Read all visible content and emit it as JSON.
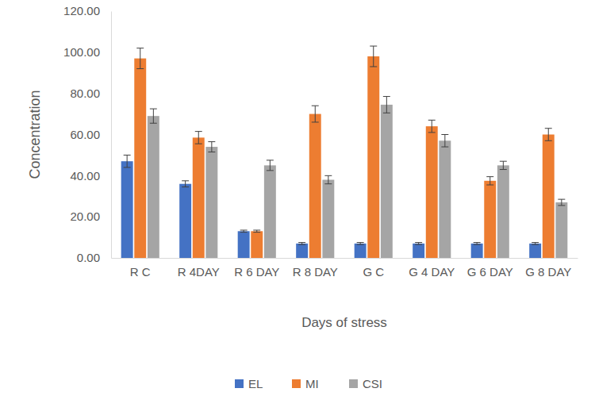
{
  "chart_data": {
    "type": "bar",
    "x_label": "Days of stress",
    "y_label": "Concentration",
    "categories": [
      "R C",
      "R 4DAY",
      "R 6 DAY",
      "R 8 DAY",
      "G C",
      "G 4 DAY",
      "G 6 DAY",
      "G 8 DAY"
    ],
    "series": [
      {
        "name": "EL",
        "color": "#4472c4",
        "values": [
          47,
          36,
          13,
          7,
          7,
          7,
          7,
          7
        ],
        "errors": [
          3,
          1.5,
          0.5,
          0.5,
          0.5,
          0.5,
          0.5,
          0.5
        ]
      },
      {
        "name": "MI",
        "color": "#ed7d31",
        "values": [
          97,
          58.5,
          13,
          70,
          98,
          64,
          37.5,
          60
        ],
        "errors": [
          5,
          3,
          0.5,
          4,
          5,
          3,
          2,
          3
        ]
      },
      {
        "name": "CSI",
        "color": "#a5a5a5",
        "values": [
          69,
          54,
          45,
          38,
          74.5,
          57,
          45,
          27
        ],
        "errors": [
          3.5,
          2.5,
          2.5,
          2,
          4,
          3,
          2,
          1.5
        ]
      }
    ],
    "ylim": [
      0,
      120
    ],
    "yticks": [
      {
        "value": 0,
        "label": "0.00"
      },
      {
        "value": 20,
        "label": "20.00"
      },
      {
        "value": 40,
        "label": "40.00"
      },
      {
        "value": 60,
        "label": "60.00"
      },
      {
        "value": 80,
        "label": "80.00"
      },
      {
        "value": 100,
        "label": "100.00"
      },
      {
        "value": 120,
        "label": "120.00"
      }
    ],
    "grid": false,
    "legend": "bottom"
  }
}
